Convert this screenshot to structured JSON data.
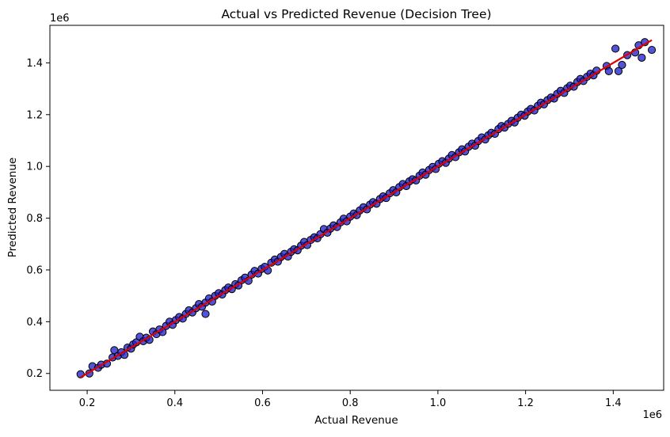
{
  "chart_data": {
    "type": "scatter",
    "title": "Actual vs Predicted Revenue (Decision Tree)",
    "xlabel": "Actual Revenue",
    "ylabel": "Predicted Revenue",
    "x_offset_label": "1e6",
    "y_offset_label": "1e6",
    "xlim": [
      0.115,
      1.515
    ],
    "ylim": [
      0.135,
      1.545
    ],
    "x_ticks": [
      0.2,
      0.4,
      0.6,
      0.8,
      1.0,
      1.2,
      1.4
    ],
    "y_ticks": [
      0.2,
      0.4,
      0.6,
      0.8,
      1.0,
      1.2,
      1.4
    ],
    "x_tick_labels": [
      "0.2",
      "0.4",
      "0.6",
      "0.8",
      "1.0",
      "1.2",
      "1.4"
    ],
    "y_tick_labels": [
      "0.2",
      "0.4",
      "0.6",
      "0.8",
      "1.0",
      "1.2",
      "1.4"
    ],
    "grid": false,
    "legend": "none",
    "point_color": "#2222cc",
    "point_edge_color": "#000000",
    "line_color": "#e00000",
    "series": [
      {
        "kind": "scatter",
        "points": [
          [
            0.185,
            0.197
          ],
          [
            0.205,
            0.2
          ],
          [
            0.212,
            0.228
          ],
          [
            0.225,
            0.222
          ],
          [
            0.232,
            0.234
          ],
          [
            0.245,
            0.238
          ],
          [
            0.258,
            0.262
          ],
          [
            0.262,
            0.29
          ],
          [
            0.27,
            0.268
          ],
          [
            0.278,
            0.282
          ],
          [
            0.285,
            0.272
          ],
          [
            0.292,
            0.3
          ],
          [
            0.3,
            0.296
          ],
          [
            0.305,
            0.312
          ],
          [
            0.312,
            0.32
          ],
          [
            0.32,
            0.342
          ],
          [
            0.328,
            0.325
          ],
          [
            0.335,
            0.338
          ],
          [
            0.342,
            0.33
          ],
          [
            0.35,
            0.362
          ],
          [
            0.358,
            0.352
          ],
          [
            0.365,
            0.37
          ],
          [
            0.372,
            0.36
          ],
          [
            0.38,
            0.384
          ],
          [
            0.388,
            0.4
          ],
          [
            0.395,
            0.388
          ],
          [
            0.402,
            0.406
          ],
          [
            0.41,
            0.418
          ],
          [
            0.418,
            0.412
          ],
          [
            0.425,
            0.43
          ],
          [
            0.432,
            0.444
          ],
          [
            0.44,
            0.436
          ],
          [
            0.448,
            0.452
          ],
          [
            0.455,
            0.468
          ],
          [
            0.462,
            0.458
          ],
          [
            0.47,
            0.474
          ],
          [
            0.47,
            0.43
          ],
          [
            0.478,
            0.49
          ],
          [
            0.485,
            0.478
          ],
          [
            0.492,
            0.5
          ],
          [
            0.5,
            0.51
          ],
          [
            0.508,
            0.505
          ],
          [
            0.515,
            0.522
          ],
          [
            0.522,
            0.532
          ],
          [
            0.53,
            0.526
          ],
          [
            0.538,
            0.545
          ],
          [
            0.545,
            0.54
          ],
          [
            0.552,
            0.56
          ],
          [
            0.56,
            0.57
          ],
          [
            0.568,
            0.558
          ],
          [
            0.575,
            0.582
          ],
          [
            0.582,
            0.596
          ],
          [
            0.59,
            0.586
          ],
          [
            0.598,
            0.604
          ],
          [
            0.605,
            0.612
          ],
          [
            0.612,
            0.598
          ],
          [
            0.62,
            0.628
          ],
          [
            0.628,
            0.64
          ],
          [
            0.635,
            0.632
          ],
          [
            0.642,
            0.65
          ],
          [
            0.65,
            0.662
          ],
          [
            0.658,
            0.652
          ],
          [
            0.665,
            0.67
          ],
          [
            0.672,
            0.68
          ],
          [
            0.68,
            0.676
          ],
          [
            0.688,
            0.694
          ],
          [
            0.695,
            0.708
          ],
          [
            0.702,
            0.696
          ],
          [
            0.71,
            0.716
          ],
          [
            0.718,
            0.726
          ],
          [
            0.725,
            0.722
          ],
          [
            0.732,
            0.738
          ],
          [
            0.74,
            0.758
          ],
          [
            0.748,
            0.744
          ],
          [
            0.755,
            0.76
          ],
          [
            0.762,
            0.772
          ],
          [
            0.77,
            0.766
          ],
          [
            0.778,
            0.784
          ],
          [
            0.785,
            0.798
          ],
          [
            0.792,
            0.788
          ],
          [
            0.8,
            0.806
          ],
          [
            0.808,
            0.818
          ],
          [
            0.815,
            0.812
          ],
          [
            0.822,
            0.83
          ],
          [
            0.83,
            0.842
          ],
          [
            0.838,
            0.834
          ],
          [
            0.845,
            0.852
          ],
          [
            0.852,
            0.862
          ],
          [
            0.86,
            0.856
          ],
          [
            0.868,
            0.874
          ],
          [
            0.875,
            0.884
          ],
          [
            0.882,
            0.878
          ],
          [
            0.89,
            0.896
          ],
          [
            0.898,
            0.908
          ],
          [
            0.905,
            0.9
          ],
          [
            0.912,
            0.92
          ],
          [
            0.92,
            0.932
          ],
          [
            0.928,
            0.924
          ],
          [
            0.935,
            0.942
          ],
          [
            0.942,
            0.95
          ],
          [
            0.95,
            0.946
          ],
          [
            0.958,
            0.964
          ],
          [
            0.965,
            0.976
          ],
          [
            0.972,
            0.968
          ],
          [
            0.98,
            0.986
          ],
          [
            0.988,
            0.998
          ],
          [
            0.995,
            0.99
          ],
          [
            1.002,
            1.01
          ],
          [
            1.01,
            1.02
          ],
          [
            1.018,
            1.014
          ],
          [
            1.025,
            1.03
          ],
          [
            1.032,
            1.044
          ],
          [
            1.04,
            1.036
          ],
          [
            1.048,
            1.054
          ],
          [
            1.055,
            1.066
          ],
          [
            1.062,
            1.058
          ],
          [
            1.07,
            1.076
          ],
          [
            1.078,
            1.088
          ],
          [
            1.085,
            1.08
          ],
          [
            1.092,
            1.098
          ],
          [
            1.1,
            1.112
          ],
          [
            1.108,
            1.104
          ],
          [
            1.115,
            1.12
          ],
          [
            1.122,
            1.13
          ],
          [
            1.13,
            1.126
          ],
          [
            1.138,
            1.144
          ],
          [
            1.145,
            1.156
          ],
          [
            1.152,
            1.15
          ],
          [
            1.16,
            1.164
          ],
          [
            1.168,
            1.176
          ],
          [
            1.175,
            1.17
          ],
          [
            1.182,
            1.188
          ],
          [
            1.19,
            1.2
          ],
          [
            1.198,
            1.196
          ],
          [
            1.205,
            1.212
          ],
          [
            1.212,
            1.222
          ],
          [
            1.22,
            1.216
          ],
          [
            1.228,
            1.234
          ],
          [
            1.235,
            1.246
          ],
          [
            1.242,
            1.24
          ],
          [
            1.25,
            1.256
          ],
          [
            1.258,
            1.266
          ],
          [
            1.265,
            1.262
          ],
          [
            1.272,
            1.28
          ],
          [
            1.28,
            1.292
          ],
          [
            1.288,
            1.284
          ],
          [
            1.295,
            1.302
          ],
          [
            1.302,
            1.312
          ],
          [
            1.31,
            1.308
          ],
          [
            1.318,
            1.326
          ],
          [
            1.325,
            1.338
          ],
          [
            1.332,
            1.33
          ],
          [
            1.34,
            1.346
          ],
          [
            1.348,
            1.358
          ],
          [
            1.355,
            1.352
          ],
          [
            1.362,
            1.37
          ],
          [
            1.385,
            1.388
          ],
          [
            1.39,
            1.368
          ],
          [
            1.405,
            1.455
          ],
          [
            1.412,
            1.368
          ],
          [
            1.42,
            1.392
          ],
          [
            1.432,
            1.43
          ],
          [
            1.45,
            1.44
          ],
          [
            1.458,
            1.468
          ],
          [
            1.465,
            1.42
          ],
          [
            1.472,
            1.48
          ],
          [
            1.488,
            1.45
          ]
        ]
      },
      {
        "kind": "line",
        "points": [
          [
            0.185,
            0.185
          ],
          [
            1.488,
            1.488
          ]
        ]
      }
    ]
  }
}
